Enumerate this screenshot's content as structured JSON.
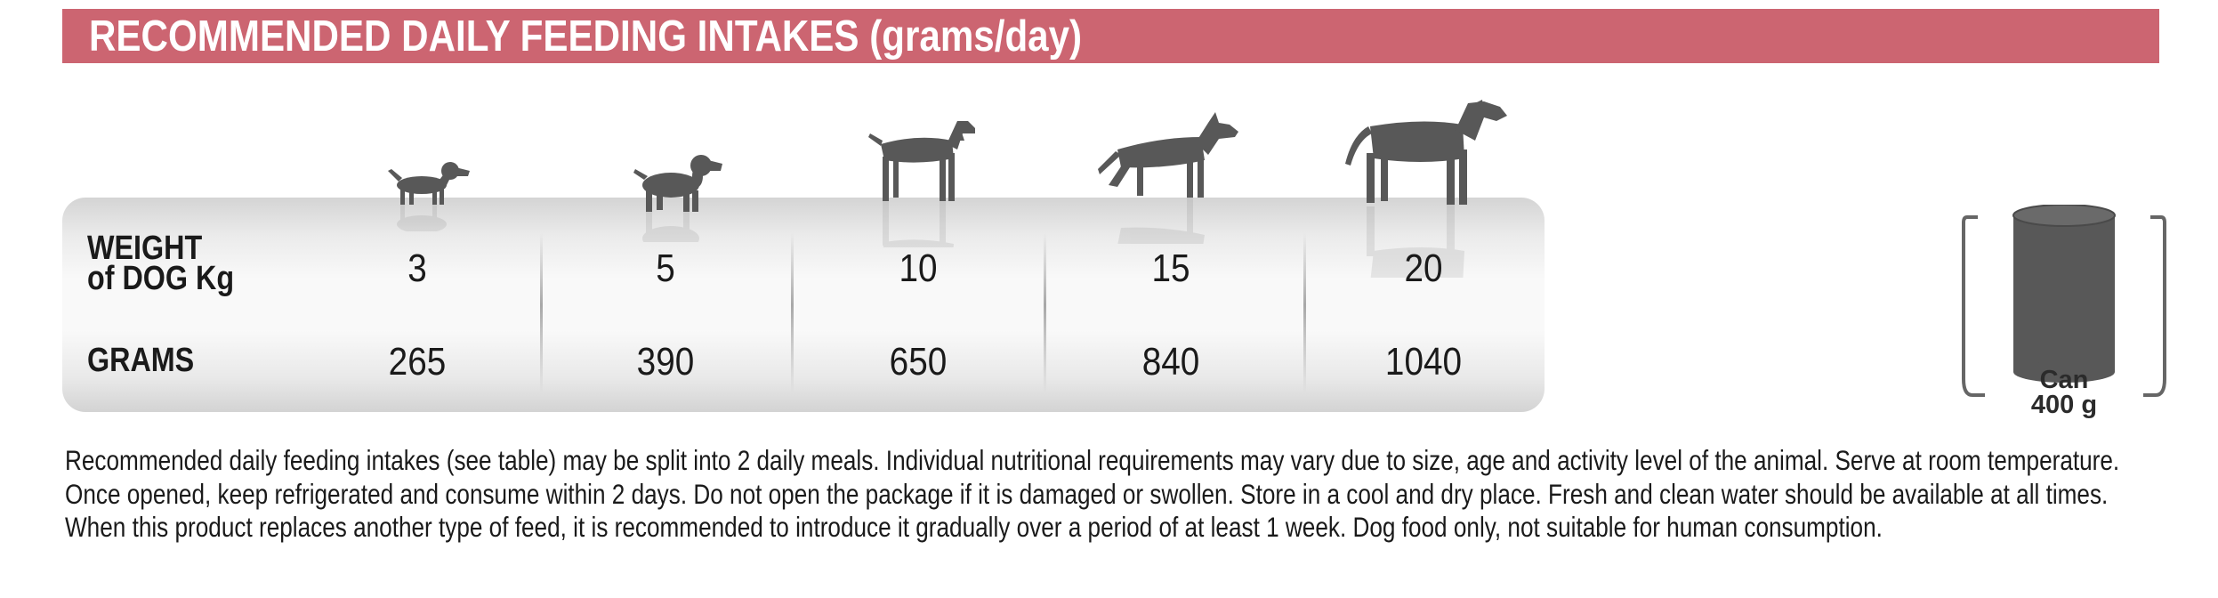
{
  "header": {
    "title": "RECOMMENDED DAILY FEEDING INTAKES (grams/day)"
  },
  "colors": {
    "banner": "#cc6571",
    "silhouette": "#585858",
    "text": "#1a1a1a"
  },
  "table": {
    "weight_label_line1": "WEIGHT",
    "weight_label_line2": "of DOG  Kg",
    "grams_label": "GRAMS",
    "columns": [
      {
        "weight": "3",
        "grams": "265",
        "icon": "small-dog-icon"
      },
      {
        "weight": "5",
        "grams": "390",
        "icon": "spaniel-dog-icon"
      },
      {
        "weight": "10",
        "grams": "650",
        "icon": "pointer-dog-icon"
      },
      {
        "weight": "15",
        "grams": "840",
        "icon": "shepherd-dog-icon"
      },
      {
        "weight": "20",
        "grams": "1040",
        "icon": "great-dane-dog-icon"
      }
    ]
  },
  "package": {
    "icon": "can-icon",
    "label_line1": "Can",
    "label_line2": "400 g"
  },
  "notes": "Recommended daily feeding intakes (see table) may be split into 2 daily meals. Individual nutritional requirements may vary due to size, age and activity level of the animal. Serve at room temperature. Once opened, keep refrigerated and consume within 2 days. Do not open the package if it is damaged or swollen. Store in a cool and dry place. Fresh and clean water should be available at all times. When this product replaces another type of feed, it is recommended to introduce it gradually over a period of at least 1 week. Dog food only, not suitable for human consumption."
}
